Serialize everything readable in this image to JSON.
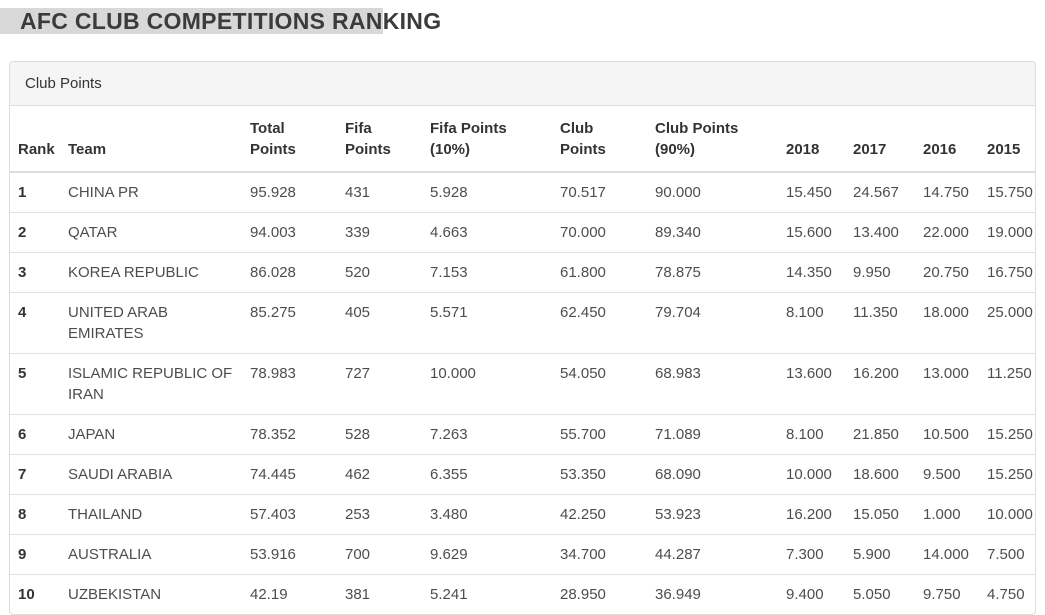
{
  "page": {
    "title": "AFC CLUB COMPETITIONS RANKING"
  },
  "theme": {
    "title_highlight": "#d8d8d8",
    "panel_heading_bg": "#f5f5f5",
    "panel_border": "#dddddd",
    "header_text": "#333333",
    "cell_text": "#4d4d4d"
  },
  "panel": {
    "heading": "Club Points"
  },
  "table": {
    "columns": [
      "Rank",
      "Team",
      "Total Points",
      "Fifa Points",
      "Fifa Points (10%)",
      "Club Points",
      "Club Points (90%)",
      "2018",
      "2017",
      "2016",
      "2015"
    ],
    "column_keys": [
      "rank",
      "team",
      "total_points",
      "fifa_points",
      "fifa_points_10",
      "club_points",
      "club_points_90",
      "y2018",
      "y2017",
      "y2016",
      "y2015"
    ],
    "rows": [
      {
        "rank": "1",
        "team": "CHINA PR",
        "total_points": "95.928",
        "fifa_points": "431",
        "fifa_points_10": "5.928",
        "club_points": "70.517",
        "club_points_90": "90.000",
        "y2018": "15.450",
        "y2017": "24.567",
        "y2016": "14.750",
        "y2015": "15.750"
      },
      {
        "rank": "2",
        "team": "QATAR",
        "total_points": "94.003",
        "fifa_points": "339",
        "fifa_points_10": "4.663",
        "club_points": "70.000",
        "club_points_90": "89.340",
        "y2018": "15.600",
        "y2017": "13.400",
        "y2016": "22.000",
        "y2015": "19.000"
      },
      {
        "rank": "3",
        "team": "KOREA REPUBLIC",
        "total_points": "86.028",
        "fifa_points": "520",
        "fifa_points_10": "7.153",
        "club_points": "61.800",
        "club_points_90": "78.875",
        "y2018": "14.350",
        "y2017": "9.950",
        "y2016": "20.750",
        "y2015": "16.750"
      },
      {
        "rank": "4",
        "team": "UNITED ARAB EMIRATES",
        "total_points": "85.275",
        "fifa_points": "405",
        "fifa_points_10": "5.571",
        "club_points": "62.450",
        "club_points_90": "79.704",
        "y2018": "8.100",
        "y2017": "11.350",
        "y2016": "18.000",
        "y2015": "25.000"
      },
      {
        "rank": "5",
        "team": "ISLAMIC REPUBLIC OF IRAN",
        "total_points": "78.983",
        "fifa_points": "727",
        "fifa_points_10": "10.000",
        "club_points": "54.050",
        "club_points_90": "68.983",
        "y2018": "13.600",
        "y2017": "16.200",
        "y2016": "13.000",
        "y2015": "11.250"
      },
      {
        "rank": "6",
        "team": "JAPAN",
        "total_points": "78.352",
        "fifa_points": "528",
        "fifa_points_10": "7.263",
        "club_points": "55.700",
        "club_points_90": "71.089",
        "y2018": "8.100",
        "y2017": "21.850",
        "y2016": "10.500",
        "y2015": "15.250"
      },
      {
        "rank": "7",
        "team": "SAUDI ARABIA",
        "total_points": "74.445",
        "fifa_points": "462",
        "fifa_points_10": "6.355",
        "club_points": "53.350",
        "club_points_90": "68.090",
        "y2018": "10.000",
        "y2017": "18.600",
        "y2016": "9.500",
        "y2015": "15.250"
      },
      {
        "rank": "8",
        "team": "THAILAND",
        "total_points": "57.403",
        "fifa_points": "253",
        "fifa_points_10": "3.480",
        "club_points": "42.250",
        "club_points_90": "53.923",
        "y2018": "16.200",
        "y2017": "15.050",
        "y2016": "1.000",
        "y2015": "10.000"
      },
      {
        "rank": "9",
        "team": "AUSTRALIA",
        "total_points": "53.916",
        "fifa_points": "700",
        "fifa_points_10": "9.629",
        "club_points": "34.700",
        "club_points_90": "44.287",
        "y2018": "7.300",
        "y2017": "5.900",
        "y2016": "14.000",
        "y2015": "7.500"
      },
      {
        "rank": "10",
        "team": "UZBEKISTAN",
        "total_points": "42.19",
        "fifa_points": "381",
        "fifa_points_10": "5.241",
        "club_points": "28.950",
        "club_points_90": "36.949",
        "y2018": "9.400",
        "y2017": "5.050",
        "y2016": "9.750",
        "y2015": "4.750"
      }
    ]
  }
}
